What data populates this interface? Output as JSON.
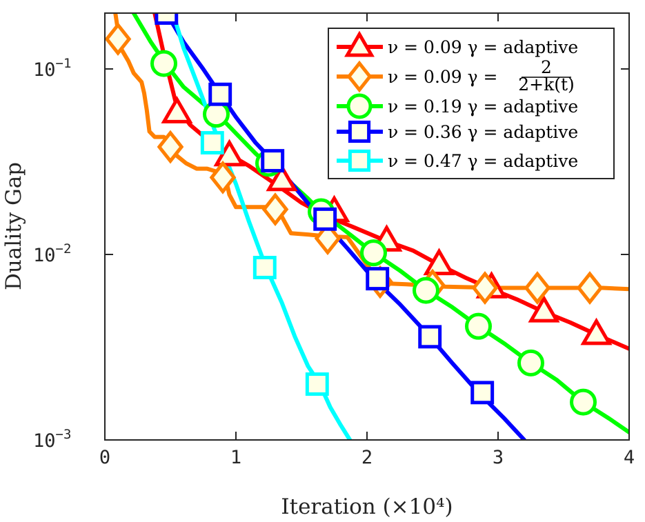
{
  "chart_data": {
    "type": "line",
    "xlabel": "Iteration (×10⁴)",
    "ylabel": "Duality Gap",
    "xlim": [
      0,
      4
    ],
    "ylim": [
      0.001,
      0.2
    ],
    "yscale": "log",
    "x_ticks": [
      "0",
      "1",
      "2",
      "3",
      "4"
    ],
    "y_ticks": [
      {
        "base": "10",
        "exp": "−1",
        "value": 0.1
      },
      {
        "base": "10",
        "exp": "−2",
        "value": 0.01
      },
      {
        "base": "10",
        "exp": "−3",
        "value": 0.001
      }
    ],
    "grid": false,
    "legend_position": "top-right",
    "series": [
      {
        "name": "ν = 0.09 γ = adaptive",
        "color": "#ff0000",
        "marker": "triangle",
        "x": [
          0.38,
          0.45,
          0.55,
          0.65,
          0.85,
          1.0,
          1.1,
          1.3,
          1.5,
          1.7,
          1.9,
          2.15,
          2.35,
          2.55,
          2.75,
          2.95,
          3.15,
          3.35,
          3.55,
          3.75,
          4.0
        ],
        "y": [
          0.2,
          0.12,
          0.062,
          0.05,
          0.038,
          0.033,
          0.03,
          0.024,
          0.019,
          0.016,
          0.014,
          0.0118,
          0.0105,
          0.0088,
          0.0075,
          0.0065,
          0.0057,
          0.0049,
          0.0043,
          0.0037,
          0.0031
        ],
        "markers": [
          [
            0.55,
            0.058
          ],
          [
            0.95,
            0.034
          ],
          [
            1.35,
            0.025
          ],
          [
            1.75,
            0.017
          ],
          [
            2.15,
            0.0118
          ],
          [
            2.55,
            0.0088
          ],
          [
            2.95,
            0.0066
          ],
          [
            3.35,
            0.0049
          ],
          [
            3.75,
            0.0037
          ]
        ]
      },
      {
        "name": "ν = 0.09 γ = 2/(2+k(t))",
        "legend_prefix": "ν = 0.09 γ =",
        "legend_frac_num": "2",
        "legend_frac_den": "2+k(t)",
        "color": "#ff8000",
        "marker": "diamond",
        "x": [
          0.08,
          0.12,
          0.18,
          0.22,
          0.28,
          0.3,
          0.32,
          0.34,
          0.38,
          0.45,
          0.5,
          0.55,
          0.62,
          0.7,
          0.78,
          0.85,
          0.92,
          0.95,
          1.0,
          1.05,
          1.2,
          1.28,
          1.35,
          1.42,
          1.55,
          1.7,
          1.85,
          2.0,
          2.1,
          2.3,
          2.45,
          2.6,
          3.0,
          3.4,
          3.8,
          4.0
        ],
        "y": [
          0.2,
          0.13,
          0.11,
          0.095,
          0.085,
          0.074,
          0.06,
          0.046,
          0.043,
          0.043,
          0.04,
          0.034,
          0.031,
          0.029,
          0.029,
          0.028,
          0.026,
          0.021,
          0.018,
          0.018,
          0.018,
          0.018,
          0.016,
          0.013,
          0.0128,
          0.0125,
          0.0124,
          0.0088,
          0.007,
          0.0069,
          0.0068,
          0.0067,
          0.0066,
          0.0066,
          0.0066,
          0.0065
        ],
        "markers": [
          [
            0.1,
            0.145
          ],
          [
            0.5,
            0.038
          ],
          [
            0.9,
            0.026
          ],
          [
            1.3,
            0.0175
          ],
          [
            1.7,
            0.0122
          ],
          [
            2.1,
            0.0071
          ],
          [
            2.5,
            0.0068
          ],
          [
            2.9,
            0.0066
          ],
          [
            3.3,
            0.0066
          ],
          [
            3.7,
            0.0066
          ]
        ]
      },
      {
        "name": "ν = 0.19 γ = adaptive",
        "color": "#00ff00",
        "marker": "circle",
        "x": [
          0.22,
          0.35,
          0.47,
          0.6,
          0.75,
          0.87,
          1.0,
          1.15,
          1.25,
          1.4,
          1.55,
          1.65,
          1.8,
          2.05,
          2.25,
          2.45,
          2.65,
          2.85,
          3.05,
          3.25,
          3.45,
          3.65,
          3.85,
          4.0
        ],
        "y": [
          0.2,
          0.14,
          0.105,
          0.08,
          0.065,
          0.056,
          0.045,
          0.035,
          0.03,
          0.025,
          0.02,
          0.017,
          0.014,
          0.0102,
          0.0082,
          0.0064,
          0.0052,
          0.0041,
          0.0033,
          0.0026,
          0.0021,
          0.0016,
          0.0013,
          0.0011
        ],
        "markers": [
          [
            0.45,
            0.107
          ],
          [
            0.85,
            0.057
          ],
          [
            1.25,
            0.031
          ],
          [
            1.65,
            0.017
          ],
          [
            2.05,
            0.0102
          ],
          [
            2.45,
            0.0064
          ],
          [
            2.85,
            0.0041
          ],
          [
            3.25,
            0.0026
          ],
          [
            3.65,
            0.0016
          ]
        ]
      },
      {
        "name": "ν = 0.36 γ = adaptive",
        "color": "#0000ff",
        "marker": "square",
        "x": [
          0.47,
          0.6,
          0.75,
          0.88,
          1.0,
          1.15,
          1.28,
          1.45,
          1.65,
          1.85,
          2.05,
          2.25,
          2.45,
          2.65,
          2.85,
          3.05,
          3.2
        ],
        "y": [
          0.2,
          0.14,
          0.1,
          0.073,
          0.055,
          0.04,
          0.032,
          0.023,
          0.0155,
          0.0108,
          0.0074,
          0.0054,
          0.0038,
          0.0026,
          0.0018,
          0.0013,
          0.001
        ],
        "markers": [
          [
            0.47,
            0.2
          ],
          [
            0.88,
            0.073
          ],
          [
            1.28,
            0.032
          ],
          [
            1.68,
            0.0155
          ],
          [
            2.08,
            0.0074
          ],
          [
            2.48,
            0.0036
          ],
          [
            2.88,
            0.0018
          ]
        ]
      },
      {
        "name": "ν = 0.47 γ = adaptive",
        "color": "#00ffff",
        "marker": "square",
        "x": [
          0.52,
          0.6,
          0.7,
          0.8,
          0.9,
          1.0,
          1.1,
          1.23,
          1.35,
          1.45,
          1.55,
          1.64,
          1.72,
          1.8,
          1.87
        ],
        "y": [
          0.2,
          0.13,
          0.085,
          0.055,
          0.036,
          0.024,
          0.015,
          0.0085,
          0.0055,
          0.0036,
          0.0025,
          0.002,
          0.0015,
          0.0012,
          0.001
        ],
        "markers": [
          [
            0.82,
            0.04
          ],
          [
            1.22,
            0.0085
          ],
          [
            1.62,
            0.002
          ]
        ]
      }
    ]
  }
}
